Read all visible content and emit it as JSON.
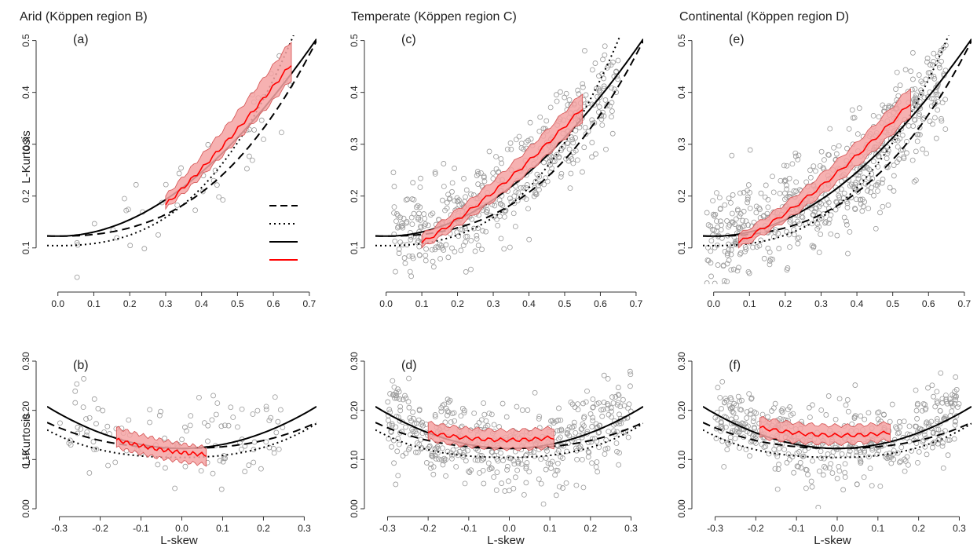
{
  "colors": {
    "band_fill": "#f4a3a3",
    "band_stroke": "#d45050",
    "median_line": "#ff0000",
    "points": "#999999",
    "curves": "#000000"
  },
  "column_titles": [
    "Arid (Köppen region B)",
    "Temperate (Köppen region C)",
    "Continental (Köppen region D)"
  ],
  "row_labels": {
    "ylabel": "L-Kurtosis",
    "xlabel": "L-skew"
  },
  "legend": {
    "entries": [
      "",
      "",
      "",
      ""
    ],
    "styles": [
      "dashed",
      "dotted",
      "solid",
      "red-solid"
    ]
  },
  "chart_data": [
    {
      "type": "scatter",
      "panel": "(a)",
      "region": "Arid",
      "row": 0,
      "col": 0,
      "xlim": [
        -0.03,
        0.72
      ],
      "ylim": [
        0.03,
        0.51
      ],
      "xticks": [
        "0.0",
        "0.1",
        "0.2",
        "0.3",
        "0.4",
        "0.5",
        "0.6",
        "0.7"
      ],
      "yticks": [
        "0.1",
        "0.2",
        "0.3",
        "0.4",
        "0.5"
      ],
      "band": {
        "x": [
          0.3,
          0.65
        ],
        "median": [
          0.183,
          0.455
        ],
        "lower": [
          0.175,
          0.425
        ],
        "upper": [
          0.2,
          0.5
        ]
      },
      "points_summary": {
        "n": 45,
        "x_range": [
          0.05,
          0.65
        ],
        "spread": 0.05
      }
    },
    {
      "type": "scatter",
      "panel": "(c)",
      "region": "Temperate",
      "row": 0,
      "col": 1,
      "xlim": [
        -0.03,
        0.72
      ],
      "ylim": [
        0.03,
        0.51
      ],
      "xticks": [
        "0.0",
        "0.1",
        "0.2",
        "0.3",
        "0.4",
        "0.5",
        "0.6",
        "0.7"
      ],
      "yticks": [
        "0.1",
        "0.2",
        "0.3",
        "0.4",
        "0.5"
      ],
      "band": {
        "x": [
          0.1,
          0.55
        ],
        "median": [
          0.11,
          0.37
        ],
        "lower": [
          0.1,
          0.345
        ],
        "upper": [
          0.125,
          0.4
        ]
      },
      "points_summary": {
        "n": 450,
        "x_range": [
          0.02,
          0.65
        ],
        "spread": 0.045
      }
    },
    {
      "type": "scatter",
      "panel": "(e)",
      "region": "Continental",
      "row": 0,
      "col": 2,
      "xlim": [
        -0.03,
        0.72
      ],
      "ylim": [
        0.03,
        0.51
      ],
      "xticks": [
        "0.0",
        "0.1",
        "0.2",
        "0.3",
        "0.4",
        "0.5",
        "0.6",
        "0.7"
      ],
      "yticks": [
        "0.1",
        "0.2",
        "0.3",
        "0.4",
        "0.5"
      ],
      "band": {
        "x": [
          0.07,
          0.55
        ],
        "median": [
          0.11,
          0.38
        ],
        "lower": [
          0.1,
          0.355
        ],
        "upper": [
          0.125,
          0.41
        ]
      },
      "points_summary": {
        "n": 600,
        "x_range": [
          -0.02,
          0.65
        ],
        "spread": 0.05
      }
    },
    {
      "type": "scatter",
      "panel": "(b)",
      "region": "Arid",
      "row": 1,
      "col": 0,
      "xlim": [
        -0.33,
        0.33
      ],
      "ylim": [
        0.0,
        0.3
      ],
      "xticks": [
        "-0.3",
        "-0.2",
        "-0.1",
        "0.0",
        "0.1",
        "0.2",
        "0.3"
      ],
      "yticks": [
        "0.00",
        "0.10",
        "0.20",
        "0.30"
      ],
      "band": {
        "x": [
          -0.16,
          0.06
        ],
        "median": [
          0.14,
          0.11
        ],
        "lower": [
          0.125,
          0.09
        ],
        "upper": [
          0.165,
          0.125
        ]
      },
      "points_summary": {
        "n": 110,
        "x_range": [
          -0.3,
          0.25
        ],
        "spread": 0.05
      }
    },
    {
      "type": "scatter",
      "panel": "(d)",
      "region": "Temperate",
      "row": 1,
      "col": 1,
      "xlim": [
        -0.33,
        0.33
      ],
      "ylim": [
        0.0,
        0.3
      ],
      "xticks": [
        "-0.3",
        "-0.2",
        "-0.1",
        "0.0",
        "0.1",
        "0.2",
        "0.3"
      ],
      "yticks": [
        "0.00",
        "0.10",
        "0.20",
        "0.30"
      ],
      "band": {
        "x": [
          -0.2,
          0.11
        ],
        "median": [
          0.155,
          0.145
        ],
        "lower": [
          0.14,
          0.125
        ],
        "upper": [
          0.175,
          0.165
        ]
      },
      "points_summary": {
        "n": 480,
        "x_range": [
          -0.3,
          0.3
        ],
        "spread": 0.045
      }
    },
    {
      "type": "scatter",
      "panel": "(f)",
      "region": "Continental",
      "row": 1,
      "col": 2,
      "xlim": [
        -0.33,
        0.33
      ],
      "ylim": [
        0.0,
        0.3
      ],
      "xticks": [
        "-0.3",
        "-0.2",
        "-0.1",
        "0.0",
        "0.1",
        "0.2",
        "0.3"
      ],
      "yticks": [
        "0.00",
        "0.10",
        "0.20",
        "0.30"
      ],
      "band": {
        "x": [
          -0.19,
          0.13
        ],
        "median": [
          0.165,
          0.155
        ],
        "lower": [
          0.145,
          0.14
        ],
        "upper": [
          0.185,
          0.175
        ]
      },
      "points_summary": {
        "n": 480,
        "x_range": [
          -0.3,
          0.3
        ],
        "spread": 0.045
      }
    }
  ]
}
